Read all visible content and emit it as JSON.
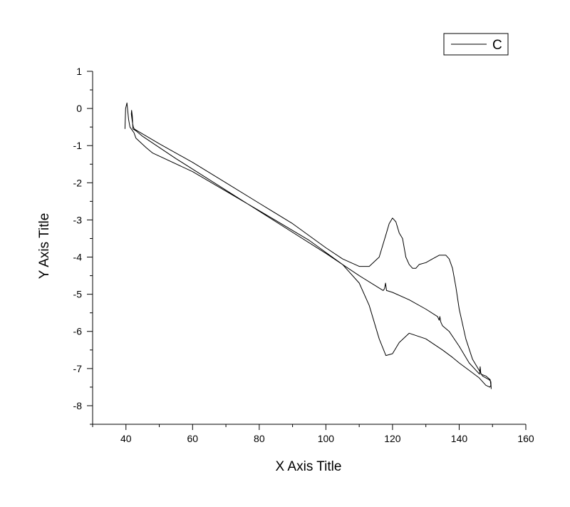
{
  "chart_data": {
    "type": "line",
    "title": "",
    "xlabel": "X Axis Title",
    "ylabel": "Y Axis Title",
    "xlim": [
      30,
      160
    ],
    "ylim": [
      -8.5,
      1
    ],
    "x_ticks": [
      40,
      60,
      80,
      100,
      120,
      140,
      160
    ],
    "y_ticks": [
      1,
      0,
      -1,
      -2,
      -3,
      -4,
      -5,
      -6,
      -7,
      -8
    ],
    "grid": false,
    "legend": {
      "position": "top-right",
      "entries": [
        "C"
      ]
    },
    "series": [
      {
        "name": "C",
        "color": "#000000",
        "x": [
          39.7,
          39.9,
          40.3,
          40.8,
          41.2,
          41.6,
          42.0,
          42.4,
          43.0,
          46.0,
          48.0,
          60.0,
          80.0,
          95.0,
          105.0,
          110.0,
          113.0,
          116.0,
          118.0,
          120.0,
          122.0,
          125.0,
          130.0,
          135.0,
          138.0,
          140.0,
          143.0,
          146.0,
          148.0,
          149.2,
          149.5,
          149.3,
          148.0,
          146.5,
          146.3,
          146.1,
          143.0,
          140.0,
          137.0,
          135.0,
          134.5,
          134.2,
          134.0,
          133.5,
          130.0,
          125.0,
          120.0,
          118.2,
          117.9,
          117.6,
          117.2,
          110.0,
          100.0,
          85.0,
          70.0,
          55.0,
          45.0,
          43.0,
          42.1,
          41.9,
          41.7,
          41.6,
          41.9,
          42.2,
          42.5,
          43.0,
          50.0,
          60.0,
          70.0,
          80.0,
          90.0,
          100.0,
          105.0,
          110.0,
          113.0,
          116.0,
          118.0,
          119.0,
          120.0,
          121.0,
          122.0,
          123.0,
          124.0,
          125.0,
          126.0,
          127.0,
          128.0,
          130.0,
          132.0,
          134.0,
          136.0,
          137.0,
          138.0,
          139.0,
          140.0,
          142.0,
          144.0,
          146.0,
          147.0,
          148.0,
          149.0,
          149.5,
          149.6
        ],
        "y": [
          -0.55,
          0.0,
          0.15,
          -0.3,
          -0.5,
          -0.55,
          -0.6,
          -0.65,
          -0.8,
          -1.05,
          -1.2,
          -1.7,
          -2.75,
          -3.55,
          -4.2,
          -4.7,
          -5.3,
          -6.2,
          -6.65,
          -6.6,
          -6.3,
          -6.05,
          -6.2,
          -6.5,
          -6.7,
          -6.85,
          -7.05,
          -7.25,
          -7.45,
          -7.5,
          -7.45,
          -7.3,
          -7.2,
          -7.15,
          -6.95,
          -7.15,
          -6.85,
          -6.4,
          -6.0,
          -5.85,
          -5.75,
          -5.6,
          -5.7,
          -5.6,
          -5.4,
          -5.15,
          -4.95,
          -4.9,
          -4.7,
          -4.85,
          -4.9,
          -4.5,
          -3.9,
          -3.05,
          -2.2,
          -1.35,
          -0.75,
          -0.6,
          -0.55,
          -0.2,
          -0.05,
          -0.15,
          -0.35,
          -0.5,
          -0.55,
          -0.58,
          -0.95,
          -1.45,
          -2.0,
          -2.55,
          -3.1,
          -3.75,
          -4.05,
          -4.25,
          -4.25,
          -4.0,
          -3.4,
          -3.1,
          -2.95,
          -3.05,
          -3.35,
          -3.5,
          -4.0,
          -4.2,
          -4.3,
          -4.3,
          -4.2,
          -4.15,
          -4.05,
          -3.95,
          -3.95,
          -4.05,
          -4.3,
          -4.8,
          -5.4,
          -6.2,
          -6.75,
          -7.05,
          -7.2,
          -7.25,
          -7.3,
          -7.35,
          -7.55
        ]
      }
    ]
  }
}
